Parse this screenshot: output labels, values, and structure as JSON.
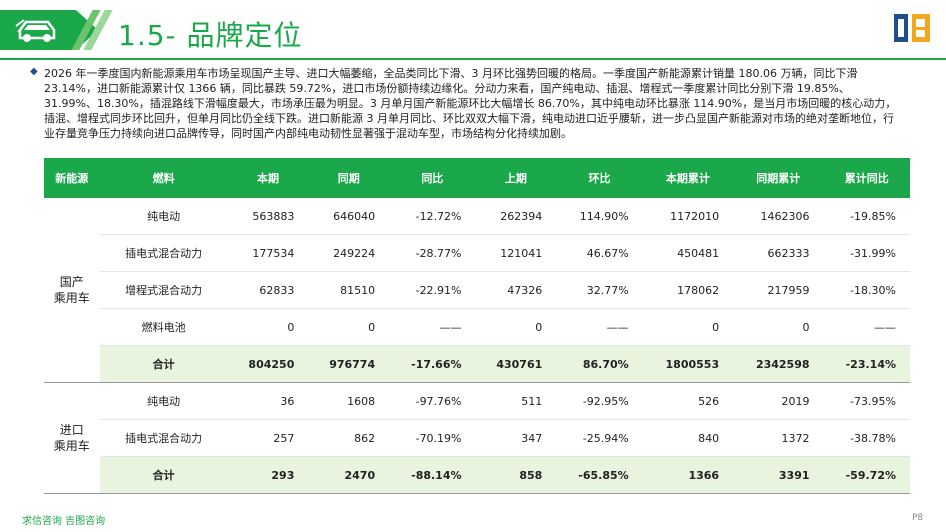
{
  "header": {
    "title": "1.5- 品牌定位"
  },
  "intro": {
    "text": "2026 年一季度国内新能源乘用车市场呈现国产主导、进口大幅萎缩，全品类同比下滑、3 月环比强势回暖的格局。一季度国产新能源累计销量 180.06 万辆，同比下滑 23.14%，进口新能源累计仅 1366 辆，同比暴跌 59.72%，进口市场份额持续边缘化。分动力来看，国产纯电动、插混、增程式一季度累计同比分别下滑 19.85%、31.99%、18.30%，插混路线下滑幅度最大，市场承压最为明显。3 月单月国产新能源环比大幅增长 86.70%，其中纯电动环比暴涨 114.90%，是当月市场回暖的核心动力，插混、增程式同步环比回升，但单月同比仍全线下跌。进口新能源 3 月单月同比、环比双双大幅下滑，纯电动进口近乎腰斩，进一步凸显国产新能源对市场的绝对垄断地位，行业存量竞争压力持续向进口品牌传导，同时国产内部纯电动韧性显著强于混动车型，市场结构分化持续加剧。"
  },
  "table": {
    "headers": [
      "新能源",
      "燃料",
      "本期",
      "同期",
      "同比",
      "上期",
      "环比",
      "本期累计",
      "同期累计",
      "累计同比"
    ],
    "groups": [
      {
        "label_line1": "国产",
        "label_line2": "乘用车",
        "rows": [
          {
            "fuel": "纯电动",
            "cur": "563883",
            "prev_year": "646040",
            "yoy": "-12.72%",
            "prev": "262394",
            "mom": "114.90%",
            "cum": "1172010",
            "cum_prev": "1462306",
            "cum_yoy": "-19.85%"
          },
          {
            "fuel": "插电式混合动力",
            "cur": "177534",
            "prev_year": "249224",
            "yoy": "-28.77%",
            "prev": "121041",
            "mom": "46.67%",
            "cum": "450481",
            "cum_prev": "662333",
            "cum_yoy": "-31.99%"
          },
          {
            "fuel": "增程式混合动力",
            "cur": "62833",
            "prev_year": "81510",
            "yoy": "-22.91%",
            "prev": "47326",
            "mom": "32.77%",
            "cum": "178062",
            "cum_prev": "217959",
            "cum_yoy": "-18.30%"
          },
          {
            "fuel": "燃料电池",
            "cur": "0",
            "prev_year": "0",
            "yoy": "——",
            "prev": "0",
            "mom": "——",
            "cum": "0",
            "cum_prev": "0",
            "cum_yoy": "——"
          }
        ],
        "total": {
          "fuel": "合计",
          "cur": "804250",
          "prev_year": "976774",
          "yoy": "-17.66%",
          "prev": "430761",
          "mom": "86.70%",
          "cum": "1800553",
          "cum_prev": "2342598",
          "cum_yoy": "-23.14%"
        }
      },
      {
        "label_line1": "进口",
        "label_line2": "乘用车",
        "rows": [
          {
            "fuel": "纯电动",
            "cur": "36",
            "prev_year": "1608",
            "yoy": "-97.76%",
            "prev": "511",
            "mom": "-92.95%",
            "cum": "526",
            "cum_prev": "2019",
            "cum_yoy": "-73.95%"
          },
          {
            "fuel": "插电式混合动力",
            "cur": "257",
            "prev_year": "862",
            "yoy": "-70.19%",
            "prev": "347",
            "mom": "-25.94%",
            "cum": "840",
            "cum_prev": "1372",
            "cum_yoy": "-38.78%"
          }
        ],
        "total": {
          "fuel": "合计",
          "cur": "293",
          "prev_year": "2470",
          "yoy": "-88.14%",
          "prev": "858",
          "mom": "-65.85%",
          "cum": "1366",
          "cum_prev": "3391",
          "cum_yoy": "-59.72%"
        }
      }
    ]
  },
  "footer": {
    "source": "求信咨询 吉图咨询",
    "page": "P8"
  },
  "colors": {
    "accent": "#1aa84a",
    "total_row": "#e9f4df"
  }
}
